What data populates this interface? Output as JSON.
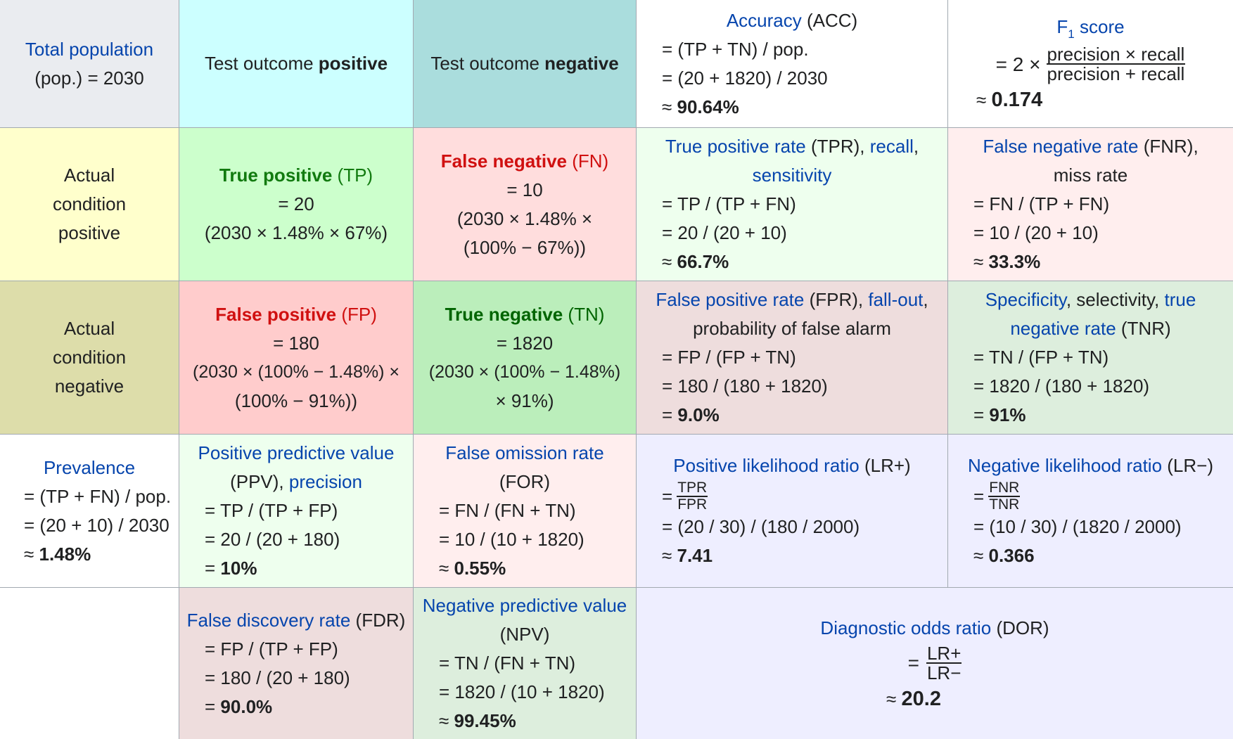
{
  "colors": {
    "total_bg": "#eaecf0",
    "test_pos_bg": "#ccffff",
    "test_neg_bg": "#aadddd",
    "actual_pos_bg": "#ffffcc",
    "actual_neg_bg": "#ddddaa",
    "tp_bg": "#ccffcc",
    "fn_bg": "#ffdddd",
    "fp_bg": "#ffcccc",
    "tn_bg": "#bbeebb",
    "tpr_bg": "#eeffee",
    "fnr_bg": "#ffeeee",
    "fpr_bg": "#eedddd",
    "tnr_bg": "#ddeedd",
    "ppv_bg": "#eeffee",
    "for_bg": "#ffeeee",
    "lr_bg": "#eeeeff",
    "fdr_bg": "#eedddd",
    "npv_bg": "#ddeedd",
    "link": "#0645ad",
    "tp_text": "#117a0f",
    "fn_text": "#d01010"
  },
  "total": {
    "link": "Total population",
    "line2": "(pop.) = 2030"
  },
  "test_pos": {
    "pre": "Test outcome ",
    "bold": "positive"
  },
  "test_neg": {
    "pre": "Test outcome ",
    "bold": "negative"
  },
  "accuracy": {
    "link": "Accuracy",
    "abbr": " (ACC)",
    "f1": "= (TP + TN) / pop.",
    "f2": "= (20 + 1820) / 2030",
    "sym": "≈ ",
    "res": "90.64%"
  },
  "f1score": {
    "link_main": "F",
    "link_sub": "1",
    "link_rest": " score",
    "eq": "= 2 ×",
    "num": "precision × recall",
    "den": "precision + recall",
    "sym": "≈ ",
    "res": "0.174"
  },
  "actual_pos": {
    "l1": "Actual",
    "l2": "condition",
    "l3": "positive"
  },
  "actual_neg": {
    "l1": "Actual",
    "l2": "condition",
    "l3": "negative"
  },
  "tp": {
    "bold": "True positive",
    "abbr": " (TP)",
    "l2": "= 20",
    "l3": "(2030 × 1.48% × 67%)"
  },
  "fn": {
    "bold": "False negative",
    "abbr": " (FN)",
    "l2": "= 10",
    "l3": "(2030 × 1.48% ×",
    "l4": "(100% − 67%))"
  },
  "tpr": {
    "link1": "True positive rate",
    "abbr": " (TPR), ",
    "link2": "recall",
    "comma": ",",
    "link3": "sensitivity",
    "f1": "= TP / (TP + FN)",
    "f2": "= 20 / (20 + 10)",
    "sym": "≈ ",
    "res": "66.7%"
  },
  "fnr": {
    "link": "False negative rate",
    "abbr": " (FNR),",
    "l2": "miss rate",
    "f1": "= FN / (TP + FN)",
    "f2": "= 10 / (20 + 10)",
    "sym": "≈ ",
    "res": "33.3%"
  },
  "fp": {
    "bold": "False positive",
    "abbr": " (FP)",
    "l2": "= 180",
    "l3": "(2030 × (100% − 1.48%) ×",
    "l4": "(100% − 91%))"
  },
  "tn": {
    "bold": "True negative",
    "abbr": " (TN)",
    "l2": "= 1820",
    "l3": "(2030 × (100% − 1.48%)",
    "l4": "× 91%)"
  },
  "fpr": {
    "link1": "False positive rate",
    "abbr": " (FPR), ",
    "link2": "fall-out",
    "comma": ",",
    "l2": "probability of false alarm",
    "f1": "= FP / (FP + TN)",
    "f2": "= 180 / (180 + 1820)",
    "sym": "= ",
    "res": "9.0%"
  },
  "tnr": {
    "link1": "Specificity",
    "mid": ", selectivity, ",
    "link2a": "true",
    "link2b": "negative rate",
    "abbr": " (TNR)",
    "f1": "= TN / (FP + TN)",
    "f2": "= 1820 / (180 + 1820)",
    "sym": "= ",
    "res": "91%"
  },
  "prevalence": {
    "link": "Prevalence",
    "f1": "= (TP + FN) / pop.",
    "f2": "= (20 + 10) / 2030",
    "sym": "≈ ",
    "res": "1.48%"
  },
  "ppv": {
    "link1": "Positive predictive value",
    "abbr": "(PPV), ",
    "link2": "precision",
    "f1": "= TP / (TP + FP)",
    "f2": "= 20 / (20 + 180)",
    "sym": "= ",
    "res": "10%"
  },
  "for": {
    "link": "False omission rate",
    "abbr": "(FOR)",
    "f1": "= FN / (FN + TN)",
    "f2": "= 10 / (10 + 1820)",
    "sym": "≈ ",
    "res": "0.55%"
  },
  "lrp": {
    "link": "Positive likelihood ratio",
    "abbr": " (LR+)",
    "eq": "=",
    "num": "TPR",
    "den": "FPR",
    "f2": "= (20 / 30) / (180 / 2000)",
    "sym": "≈ ",
    "res": "7.41"
  },
  "lrn": {
    "link": "Negative likelihood ratio",
    "abbr": " (LR−)",
    "eq": "=",
    "num": "FNR",
    "den": "TNR",
    "f2": "= (10 / 30) / (1820 / 2000)",
    "sym": "≈ ",
    "res": "0.366"
  },
  "fdr": {
    "link": "False discovery rate",
    "abbr": " (FDR)",
    "f1": "= FP / (TP + FP)",
    "f2": "= 180 / (20 + 180)",
    "sym": "= ",
    "res": "90.0%"
  },
  "npv": {
    "link": "Negative predictive value",
    "abbr": "(NPV)",
    "f1": "= TN / (FN + TN)",
    "f2": "= 1820 / (10 + 1820)",
    "sym": "≈ ",
    "res": "99.45%"
  },
  "dor": {
    "link": "Diagnostic odds ratio",
    "abbr": " (DOR)",
    "eq": "=",
    "num": "LR+",
    "den": "LR−",
    "sym": "≈ ",
    "res": "20.2"
  }
}
